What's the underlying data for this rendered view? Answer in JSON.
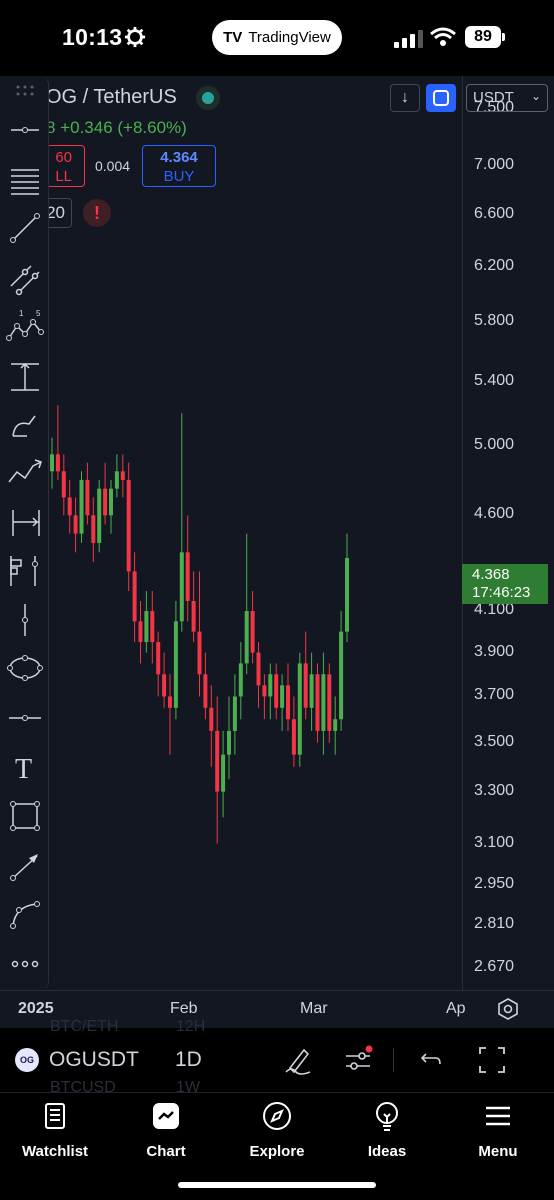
{
  "status_bar": {
    "time": "10:13",
    "app_pill": "TradingView",
    "battery": "89"
  },
  "header": {
    "symbol_title": "OG / TetherUS",
    "change_text": "8 +0.346 (+8.60%)",
    "sell": {
      "price": "60",
      "label": "LL"
    },
    "spread": "0.004",
    "buy": {
      "price": "4.364",
      "label": "BUY"
    },
    "quantity": "20",
    "alert": "!"
  },
  "price_axis": {
    "currency": "USDT",
    "labels": [
      "7.500",
      "7.000",
      "6.600",
      "6.200",
      "5.800",
      "5.400",
      "5.000",
      "4.600",
      "4.100",
      "3.900",
      "3.700",
      "3.500",
      "3.300",
      "3.100",
      "2.950",
      "2.810",
      "2.670"
    ],
    "current_price": "4.368",
    "countdown": "17:46:23"
  },
  "time_axis": {
    "labels": [
      "2025",
      "Feb",
      "Mar",
      "Ap"
    ]
  },
  "symbol_bar": {
    "symbol": "OGUSDT",
    "interval": "1D",
    "logo": "OG",
    "ghost_rows": [
      "BTC/ETH",
      "12H",
      "BTCUSD",
      "1W"
    ]
  },
  "tabs": [
    {
      "label": "Watchlist",
      "icon": "watchlist-icon"
    },
    {
      "label": "Chart",
      "icon": "chart-icon"
    },
    {
      "label": "Explore",
      "icon": "compass-icon"
    },
    {
      "label": "Ideas",
      "icon": "lightbulb-icon"
    },
    {
      "label": "Menu",
      "icon": "menu-icon"
    }
  ],
  "colors": {
    "up": "#4caf50",
    "down": "#f23645",
    "background": "#131722",
    "accent": "#2962ff"
  },
  "chart_data": {
    "type": "candlestick",
    "symbol": "OGUSDT",
    "interval": "1D",
    "y_scale": "log",
    "ylim": [
      2.6,
      7.8
    ],
    "candles": [
      [
        4.85,
        5.05,
        4.75,
        4.95
      ],
      [
        4.95,
        5.25,
        4.8,
        4.85
      ],
      [
        4.85,
        4.95,
        4.6,
        4.7
      ],
      [
        4.7,
        4.8,
        4.5,
        4.6
      ],
      [
        4.6,
        4.7,
        4.4,
        4.5
      ],
      [
        4.5,
        4.85,
        4.45,
        4.8
      ],
      [
        4.8,
        4.9,
        4.55,
        4.6
      ],
      [
        4.6,
        4.7,
        4.35,
        4.45
      ],
      [
        4.45,
        4.8,
        4.4,
        4.75
      ],
      [
        4.75,
        4.9,
        4.55,
        4.6
      ],
      [
        4.6,
        4.8,
        4.5,
        4.75
      ],
      [
        4.75,
        4.95,
        4.7,
        4.85
      ],
      [
        4.85,
        4.95,
        4.7,
        4.8
      ],
      [
        4.8,
        4.9,
        4.2,
        4.3
      ],
      [
        4.3,
        4.4,
        3.95,
        4.05
      ],
      [
        4.05,
        4.15,
        3.85,
        3.95
      ],
      [
        3.95,
        4.2,
        3.9,
        4.1
      ],
      [
        4.1,
        4.2,
        3.85,
        3.95
      ],
      [
        3.95,
        4.0,
        3.7,
        3.8
      ],
      [
        3.8,
        3.9,
        3.65,
        3.7
      ],
      [
        3.7,
        3.8,
        3.45,
        3.65
      ],
      [
        3.65,
        4.15,
        3.6,
        4.05
      ],
      [
        4.05,
        5.2,
        4.0,
        4.4
      ],
      [
        4.4,
        4.6,
        4.05,
        4.15
      ],
      [
        4.15,
        4.3,
        3.95,
        4.0
      ],
      [
        4.0,
        4.3,
        3.7,
        3.8
      ],
      [
        3.8,
        3.9,
        3.6,
        3.65
      ],
      [
        3.65,
        3.75,
        3.4,
        3.55
      ],
      [
        3.55,
        3.7,
        3.1,
        3.3
      ],
      [
        3.3,
        3.55,
        3.2,
        3.45
      ],
      [
        3.45,
        3.7,
        3.35,
        3.55
      ],
      [
        3.55,
        3.8,
        3.45,
        3.7
      ],
      [
        3.7,
        3.95,
        3.6,
        3.85
      ],
      [
        3.85,
        4.5,
        3.8,
        4.1
      ],
      [
        4.1,
        4.2,
        3.85,
        3.9
      ],
      [
        3.9,
        3.95,
        3.65,
        3.75
      ],
      [
        3.75,
        3.8,
        3.6,
        3.7
      ],
      [
        3.7,
        3.85,
        3.6,
        3.8
      ],
      [
        3.8,
        3.85,
        3.6,
        3.65
      ],
      [
        3.65,
        3.8,
        3.55,
        3.75
      ],
      [
        3.75,
        3.85,
        3.55,
        3.6
      ],
      [
        3.6,
        3.7,
        3.4,
        3.45
      ],
      [
        3.45,
        3.9,
        3.4,
        3.85
      ],
      [
        3.85,
        4.0,
        3.6,
        3.65
      ],
      [
        3.65,
        3.9,
        3.55,
        3.8
      ],
      [
        3.8,
        3.85,
        3.5,
        3.55
      ],
      [
        3.55,
        3.9,
        3.45,
        3.8
      ],
      [
        3.8,
        3.85,
        3.5,
        3.55
      ],
      [
        3.55,
        3.7,
        3.45,
        3.6
      ],
      [
        3.6,
        4.1,
        3.55,
        4.0
      ],
      [
        4.0,
        4.5,
        3.95,
        4.37
      ]
    ]
  }
}
